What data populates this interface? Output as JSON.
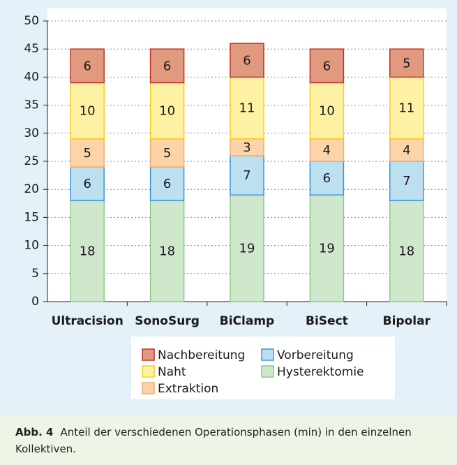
{
  "chart_data": {
    "type": "stacked_bar",
    "categories": [
      "Ultracision",
      "SonoSurg",
      "BiClamp",
      "BiSect",
      "Bipolar"
    ],
    "series": [
      {
        "name": "Hysterektomie",
        "color": "#cfe8cc",
        "edgecolor": "#8cc987",
        "values": [
          18,
          18,
          19,
          19,
          18
        ]
      },
      {
        "name": "Vorbereitung",
        "color": "#bde0f1",
        "edgecolor": "#3a98d2",
        "values": [
          6,
          6,
          7,
          6,
          7
        ]
      },
      {
        "name": "Extraktion",
        "color": "#fdd3a9",
        "edgecolor": "#f3ad72",
        "values": [
          5,
          5,
          3,
          4,
          4
        ]
      },
      {
        "name": "Naht",
        "color": "#fff1a3",
        "edgecolor": "#f2cf1e",
        "values": [
          10,
          10,
          11,
          10,
          11
        ]
      },
      {
        "name": "Nachbereitung",
        "color": "#e19a80",
        "edgecolor": "#c0321f",
        "values": [
          6,
          6,
          6,
          6,
          5
        ]
      }
    ],
    "ylim": [
      0,
      50
    ],
    "yticks": [
      0,
      5,
      10,
      15,
      20,
      25,
      30,
      35,
      40,
      45,
      50
    ],
    "grid": true,
    "caption_label": "Abb. 4",
    "caption": "Anteil der verschiedenen Operationsphasen (min) in den einzelnen Kollektiven."
  }
}
